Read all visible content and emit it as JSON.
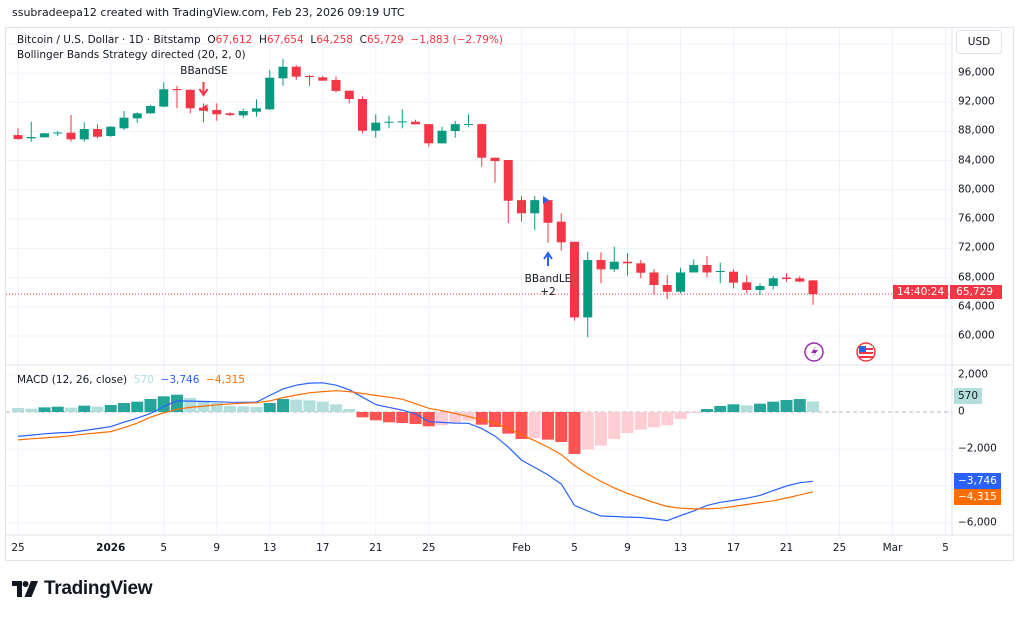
{
  "credit": "ssubradeepa12 created with TradingView.com, Feb 23, 2026 09:19 UTC",
  "legend": {
    "symbol": "Bitcoin / U.S. Dollar · 1D · Bitstamp",
    "o_label": "O",
    "o": "67,612",
    "h_label": "H",
    "h": "67,654",
    "l_label": "L",
    "l": "64,258",
    "c_label": "C",
    "c": "65,729",
    "change": "−1,883 (−2.79%)",
    "strategy": "Bollinger Bands Strategy directed (20, 2, 0)"
  },
  "currency": "USD",
  "last_price": {
    "price": "65,729",
    "countdown": "14:40:24"
  },
  "markers": {
    "short_label": "BBandSE",
    "long_label": "BBandLE",
    "long_sub": "+2"
  },
  "macd_legend": {
    "title": "MACD (12, 26, close)",
    "hist": "570",
    "macd": "−3,746",
    "signal": "−4,315"
  },
  "event_icons": [
    "lightning-icon",
    "us-flag-icon"
  ],
  "colors": {
    "up": "#089981",
    "down": "#f23645",
    "macd": "#2962ff",
    "signal": "#ff6d00",
    "hist_up_strong": "#26a69a",
    "hist_up_weak": "#b2dfdb",
    "hist_down_strong": "#ff5252",
    "hist_down_weak": "#ffcdd2",
    "event_purple": "#9c27b0"
  },
  "time_axis": [
    {
      "label": "25",
      "date": "2025-12-25"
    },
    {
      "label": "2026",
      "date": "2026-01-01",
      "bold": true
    },
    {
      "label": "5",
      "date": "2026-01-05"
    },
    {
      "label": "9",
      "date": "2026-01-09"
    },
    {
      "label": "13",
      "date": "2026-01-13"
    },
    {
      "label": "17",
      "date": "2026-01-17"
    },
    {
      "label": "21",
      "date": "2026-01-21"
    },
    {
      "label": "25",
      "date": "2026-01-25"
    },
    {
      "label": "Feb",
      "date": "2026-02-01"
    },
    {
      "label": "5",
      "date": "2026-02-05"
    },
    {
      "label": "9",
      "date": "2026-02-09"
    },
    {
      "label": "13",
      "date": "2026-02-13"
    },
    {
      "label": "17",
      "date": "2026-02-17"
    },
    {
      "label": "21",
      "date": "2026-02-21"
    },
    {
      "label": "25",
      "date": "2026-02-25"
    },
    {
      "label": "Mar",
      "date": "2026-03-01"
    },
    {
      "label": "5",
      "date": "2026-03-05"
    }
  ],
  "logo_text": "TradingView",
  "chart_data": [
    {
      "type": "candlestick",
      "title": "Bitcoin / U.S. Dollar · 1D · Bitstamp",
      "ylim": [
        56000,
        100000
      ],
      "yticks": [
        "60,000",
        "64,000",
        "68,000",
        "72,000",
        "76,000",
        "80,000",
        "84,000",
        "88,000",
        "92,000",
        "96,000"
      ],
      "ytick_values": [
        60000,
        64000,
        68000,
        72000,
        76000,
        80000,
        84000,
        88000,
        92000,
        96000
      ],
      "grid": true,
      "columns": [
        "date",
        "open",
        "high",
        "low",
        "close"
      ],
      "candles": [
        [
          "2025-12-25",
          87500,
          88430,
          86830,
          86960
        ],
        [
          "2025-12-26",
          87060,
          89330,
          86600,
          87240
        ],
        [
          "2025-12-27",
          87200,
          87800,
          87150,
          87745
        ],
        [
          "2025-12-28",
          87800,
          88060,
          87380,
          87850
        ],
        [
          "2025-12-29",
          87830,
          90250,
          86600,
          86920
        ],
        [
          "2025-12-30",
          86920,
          89250,
          86600,
          88330
        ],
        [
          "2025-12-31",
          88330,
          88980,
          87060,
          87280
        ],
        [
          "2026-01-01",
          87370,
          88700,
          87270,
          88650
        ],
        [
          "2026-01-02",
          88430,
          90800,
          88200,
          89880
        ],
        [
          "2026-01-03",
          89800,
          90620,
          89200,
          90480
        ],
        [
          "2026-01-04",
          90480,
          91600,
          90400,
          91480
        ],
        [
          "2026-01-05",
          91400,
          94730,
          91300,
          93770
        ],
        [
          "2026-01-06",
          93800,
          94260,
          91170,
          93650
        ],
        [
          "2026-01-07",
          93700,
          93800,
          90480,
          91170
        ],
        [
          "2026-01-08",
          91250,
          91850,
          89250,
          90840
        ],
        [
          "2026-01-09",
          90930,
          91850,
          89470,
          90350
        ],
        [
          "2026-01-10",
          90480,
          90620,
          90100,
          90250
        ],
        [
          "2026-01-11",
          90200,
          91080,
          89850,
          90800
        ],
        [
          "2026-01-12",
          90700,
          92400,
          90020,
          91170
        ],
        [
          "2026-01-13",
          91030,
          96400,
          90930,
          95360
        ],
        [
          "2026-01-14",
          95270,
          97900,
          94260,
          96860
        ],
        [
          "2026-01-15",
          96860,
          97100,
          95050,
          95500
        ],
        [
          "2026-01-16",
          95600,
          95730,
          94260,
          95450
        ],
        [
          "2026-01-17",
          95400,
          95600,
          94950,
          94950
        ],
        [
          "2026-01-18",
          95050,
          95500,
          93330,
          93550
        ],
        [
          "2026-01-19",
          93580,
          93600,
          91850,
          92440
        ],
        [
          "2026-01-20",
          92440,
          92760,
          87750,
          88100
        ],
        [
          "2026-01-21",
          88100,
          90350,
          87150,
          89200
        ],
        [
          "2026-01-22",
          89300,
          90160,
          88430,
          89330
        ],
        [
          "2026-01-23",
          89300,
          91030,
          88430,
          89380
        ],
        [
          "2026-01-24",
          89330,
          89600,
          88980,
          88980
        ],
        [
          "2026-01-25",
          89000,
          89000,
          85910,
          86370
        ],
        [
          "2026-01-26",
          86370,
          88650,
          86370,
          88100
        ],
        [
          "2026-01-27",
          88060,
          89430,
          87150,
          89000
        ],
        [
          "2026-01-28",
          88950,
          90350,
          88650,
          89020
        ],
        [
          "2026-01-29",
          89000,
          89100,
          83170,
          84400
        ],
        [
          "2026-01-30",
          84400,
          84400,
          81000,
          83950
        ],
        [
          "2026-01-31",
          84090,
          84090,
          75500,
          78520
        ],
        [
          "2026-02-01",
          78600,
          79150,
          75650,
          76800
        ],
        [
          "2026-02-02",
          76800,
          79150,
          74500,
          78600
        ],
        [
          "2026-02-03",
          78600,
          78600,
          72770,
          75500
        ],
        [
          "2026-02-04",
          75650,
          76800,
          71680,
          72820
        ],
        [
          "2026-02-05",
          72900,
          72900,
          62090,
          62550
        ],
        [
          "2026-02-06",
          62550,
          71540,
          59820,
          70400
        ],
        [
          "2026-02-07",
          70400,
          71450,
          67220,
          69130
        ],
        [
          "2026-02-08",
          69130,
          72230,
          68790,
          70170
        ],
        [
          "2026-02-09",
          70170,
          71320,
          68250,
          69950
        ],
        [
          "2026-02-10",
          69950,
          70400,
          67900,
          68660
        ],
        [
          "2026-02-11",
          68700,
          69130,
          65700,
          66980
        ],
        [
          "2026-02-12",
          66980,
          68340,
          65060,
          66060
        ],
        [
          "2026-02-13",
          66060,
          69350,
          65840,
          68700
        ],
        [
          "2026-02-14",
          68700,
          70500,
          68700,
          69720
        ],
        [
          "2026-02-15",
          69720,
          70950,
          68030,
          68700
        ],
        [
          "2026-02-16",
          68800,
          70030,
          67220,
          68900
        ],
        [
          "2026-02-17",
          68800,
          69130,
          66520,
          67300
        ],
        [
          "2026-02-18",
          67350,
          68340,
          65840,
          66300
        ],
        [
          "2026-02-19",
          66300,
          67220,
          65610,
          66850
        ],
        [
          "2026-02-20",
          66850,
          68200,
          66380,
          67900
        ],
        [
          "2026-02-21",
          68000,
          68570,
          67430,
          67800
        ],
        [
          "2026-02-22",
          67900,
          68200,
          67350,
          67450
        ],
        [
          "2026-02-23",
          67612,
          67654,
          64258,
          65729
        ]
      ],
      "signals": [
        {
          "date": "2026-01-08",
          "type": "short",
          "label": "BBandSE"
        },
        {
          "date": "2026-02-03",
          "type": "long",
          "label": "BBandLE",
          "sub": "+2"
        }
      ],
      "last_value": 65729
    },
    {
      "type": "line",
      "title": "MACD (12, 26, close)",
      "ylim": [
        -6500,
        2500
      ],
      "yticks": [
        "2,000",
        "0",
        "−2,000",
        "−6,000"
      ],
      "ytick_values": [
        2000,
        0,
        -2000,
        -6000
      ],
      "grid": true,
      "x_start": "2025-12-25",
      "x_end": "2026-02-23",
      "histogram": [
        216,
        180,
        252,
        288,
        234,
        342,
        288,
        378,
        486,
        558,
        702,
        846,
        936,
        756,
        612,
        486,
        324,
        306,
        270,
        486,
        702,
        666,
        630,
        558,
        414,
        162,
        -288,
        -450,
        -558,
        -594,
        -648,
        -774,
        -720,
        -558,
        -468,
        -684,
        -810,
        -1170,
        -1458,
        -1404,
        -1494,
        -1620,
        -2268,
        -2034,
        -1818,
        -1458,
        -1134,
        -954,
        -828,
        -720,
        -378,
        -54,
        162,
        324,
        414,
        360,
        450,
        558,
        648,
        702,
        570
      ],
      "series": [
        {
          "name": "MACD",
          "values": [
            -1320,
            -1250,
            -1180,
            -1130,
            -1100,
            -1000,
            -900,
            -790,
            -550,
            -330,
            -80,
            300,
            600,
            590,
            570,
            550,
            530,
            525,
            530,
            900,
            1250,
            1450,
            1560,
            1580,
            1450,
            1200,
            800,
            400,
            250,
            100,
            -100,
            -520,
            -560,
            -600,
            -610,
            -900,
            -1300,
            -1900,
            -2600,
            -3000,
            -3400,
            -3900,
            -5050,
            -5350,
            -5620,
            -5650,
            -5680,
            -5700,
            -5780,
            -5870,
            -5600,
            -5350,
            -5050,
            -4880,
            -4780,
            -4660,
            -4510,
            -4250,
            -4000,
            -3820,
            -3746
          ]
        },
        {
          "name": "Signal",
          "values": [
            -1510,
            -1450,
            -1400,
            -1350,
            -1280,
            -1200,
            -1130,
            -1060,
            -850,
            -600,
            -280,
            -50,
            150,
            250,
            320,
            390,
            440,
            480,
            500,
            600,
            780,
            920,
            1040,
            1100,
            1150,
            1100,
            1000,
            900,
            800,
            690,
            450,
            200,
            70,
            -80,
            -250,
            -420,
            -600,
            -900,
            -1230,
            -1550,
            -1900,
            -2300,
            -2900,
            -3350,
            -3750,
            -4100,
            -4400,
            -4650,
            -4900,
            -5110,
            -5200,
            -5240,
            -5240,
            -5200,
            -5110,
            -5000,
            -4900,
            -4800,
            -4650,
            -4480,
            -4315
          ]
        }
      ]
    }
  ]
}
